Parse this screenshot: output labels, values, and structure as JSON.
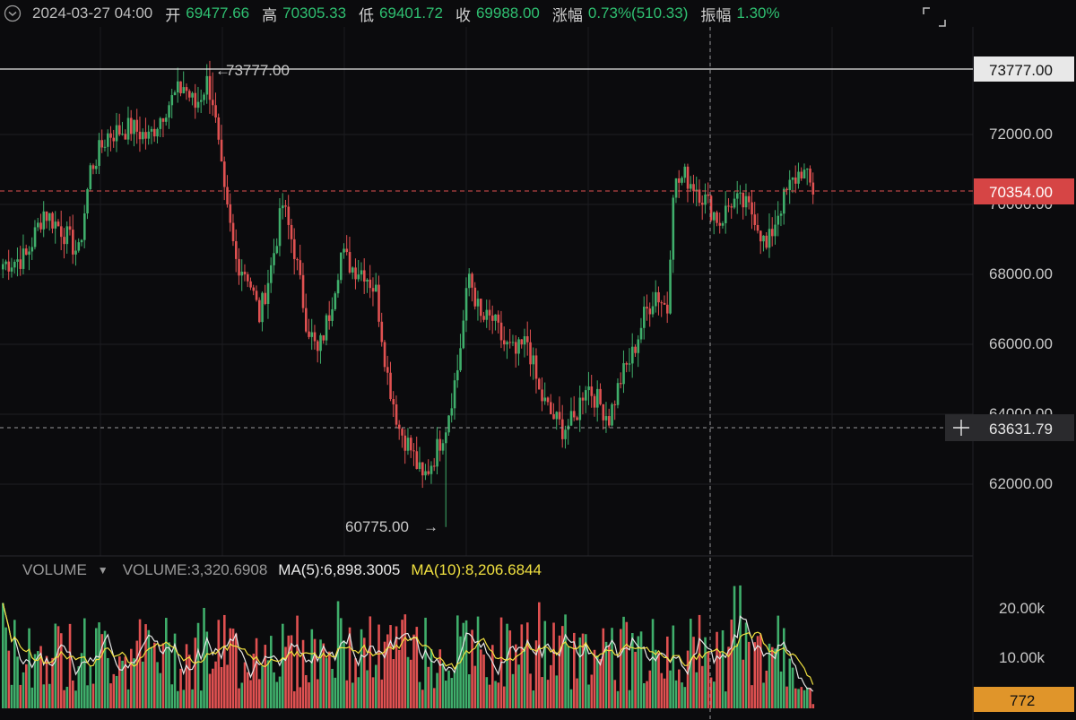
{
  "header": {
    "datetime": "2024-03-27 04:00",
    "open_label": "开",
    "open": "69477.66",
    "high_label": "高",
    "high": "70305.33",
    "low_label": "低",
    "low": "69401.72",
    "close_label": "收",
    "close": "69988.00",
    "change_label": "涨幅",
    "change": "0.73%(510.33)",
    "amp_label": "振幅",
    "amp": "1.30%"
  },
  "price_axis": {
    "ticks": [
      "72000.00",
      "70000.00",
      "68000.00",
      "66000.00",
      "64000.00",
      "62000.00"
    ],
    "high_tag": "73777.00",
    "last_tag": "70354.00",
    "crosshair_tag": "63631.79"
  },
  "annotations": {
    "max_label": "73777.00",
    "min_label": "60775.00"
  },
  "volume_panel": {
    "name": "VOLUME",
    "value": "VOLUME:3,320.6908",
    "ma5": "MA(5):6,898.3005",
    "ma10": "MA(10):8,206.6844",
    "ticks": [
      "20.00k",
      "10.00k"
    ],
    "last_tag": "772"
  },
  "colors": {
    "up": "#3fae6b",
    "down": "#e05151",
    "ma5": "#e6e6e6",
    "ma10": "#f0e040",
    "last_tag_bg": "#d64545",
    "vol_tag_bg": "#e0952a"
  },
  "chart_data": {
    "type": "candlestick",
    "y_range": [
      60000,
      74500
    ],
    "high_marker": 73777,
    "low_marker": 60775,
    "last_price": 70354,
    "crosshair_price": 63631.79,
    "anchors": [
      [
        0,
        68300
      ],
      [
        8,
        68500
      ],
      [
        14,
        69800
      ],
      [
        20,
        69300
      ],
      [
        26,
        68600
      ],
      [
        30,
        71000
      ],
      [
        36,
        72000
      ],
      [
        44,
        72200
      ],
      [
        50,
        71900
      ],
      [
        56,
        72800
      ],
      [
        62,
        73400
      ],
      [
        66,
        72800
      ],
      [
        70,
        73500
      ],
      [
        72,
        73000
      ],
      [
        76,
        70200
      ],
      [
        80,
        68400
      ],
      [
        84,
        68000
      ],
      [
        88,
        66800
      ],
      [
        92,
        68200
      ],
      [
        96,
        70000
      ],
      [
        100,
        68700
      ],
      [
        104,
        66700
      ],
      [
        108,
        65700
      ],
      [
        112,
        66900
      ],
      [
        116,
        68600
      ],
      [
        120,
        68200
      ],
      [
        124,
        68100
      ],
      [
        128,
        67500
      ],
      [
        132,
        65100
      ],
      [
        136,
        63600
      ],
      [
        140,
        63000
      ],
      [
        144,
        62100
      ],
      [
        148,
        62800
      ],
      [
        152,
        63700
      ],
      [
        156,
        65300
      ],
      [
        160,
        68000
      ],
      [
        164,
        66700
      ],
      [
        168,
        66700
      ],
      [
        172,
        66000
      ],
      [
        176,
        65700
      ],
      [
        180,
        66100
      ],
      [
        184,
        64600
      ],
      [
        188,
        64000
      ],
      [
        192,
        63600
      ],
      [
        196,
        63800
      ],
      [
        200,
        64900
      ],
      [
        204,
        64400
      ],
      [
        208,
        63900
      ],
      [
        212,
        65000
      ],
      [
        216,
        65700
      ],
      [
        220,
        66800
      ],
      [
        224,
        67500
      ],
      [
        228,
        67000
      ],
      [
        230,
        70500
      ],
      [
        234,
        70800
      ],
      [
        238,
        70500
      ],
      [
        242,
        70000
      ],
      [
        246,
        69500
      ],
      [
        250,
        70100
      ],
      [
        254,
        70000
      ],
      [
        258,
        69700
      ],
      [
        262,
        68700
      ],
      [
        266,
        69800
      ],
      [
        270,
        70500
      ],
      [
        274,
        71000
      ],
      [
        278,
        70400
      ]
    ],
    "volume_range": [
      0,
      26000
    ],
    "volume_last": 772,
    "volume_ma5": 6898.3005,
    "volume_ma10": 8206.6844
  }
}
